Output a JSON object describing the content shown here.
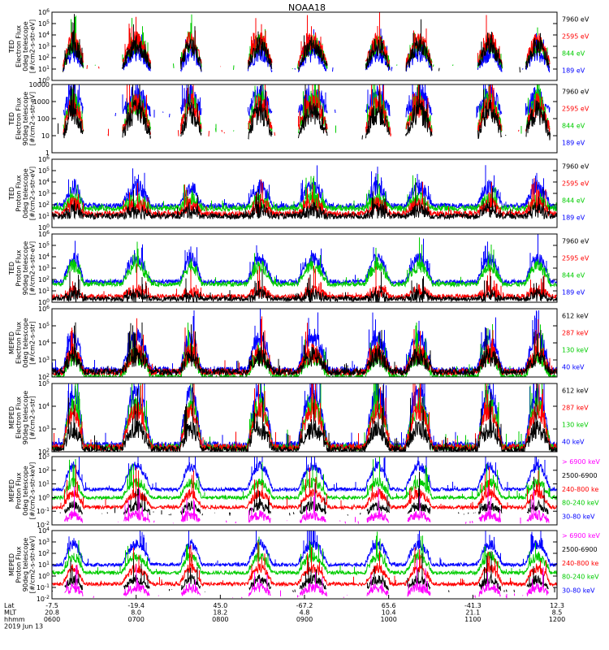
{
  "chart_data": {
    "type": "line",
    "title": "NOAA18",
    "x_axis": {
      "rows": [
        {
          "label": "Lat",
          "values": [
            "-7.5",
            "-19.4",
            "45.0",
            "-67.2",
            "65.6",
            "-41.3",
            "12.3"
          ]
        },
        {
          "label": "MLT",
          "values": [
            "20.8",
            "8.0",
            "18.2",
            "4.8",
            "10.4",
            "21.1",
            "8.5"
          ]
        },
        {
          "label": "hhmm",
          "values": [
            "0600",
            "0700",
            "0800",
            "0900",
            "1000",
            "1100",
            "1200"
          ]
        }
      ],
      "date": "2019 Jun 13",
      "range_hours": [
        6,
        12
      ]
    },
    "panels": [
      {
        "id": "p1",
        "ylabel": [
          "TED",
          "Electron Flux",
          "0deg telescope",
          "[#/cm2-s-str-eV]"
        ],
        "ticks": [
          "10^0",
          "10^1",
          "10^2",
          "10^3",
          "10^4",
          "10^5",
          "10^6"
        ],
        "log_range": [
          0,
          6
        ],
        "legend": [
          {
            "text": "7960 eV",
            "color": "#000000"
          },
          {
            "text": "2595 eV",
            "color": "#ff0000"
          },
          {
            "text": "844 eV",
            "color": "#00cc00"
          },
          {
            "text": "189 eV",
            "color": "#0000ff"
          }
        ],
        "style": "ted_e",
        "sim": {
          "base": [
            1.0,
            1.3,
            1.2,
            0.9
          ],
          "act": [
            3.0,
            3.5,
            3.2,
            2.5
          ],
          "noise": 0.6,
          "gap": true
        }
      },
      {
        "id": "p2",
        "ylabel": [
          "TED",
          "Electron Flux",
          "90deg telescope",
          "[#/cm2-s-str-eV]"
        ],
        "ticks": [
          "1",
          "10",
          "100",
          "1000",
          "10000"
        ],
        "log_range": [
          0,
          4
        ],
        "legend": [
          {
            "text": "7960 eV",
            "color": "#000000"
          },
          {
            "text": "2595 eV",
            "color": "#ff0000"
          },
          {
            "text": "844 eV",
            "color": "#00cc00"
          },
          {
            "text": "189 eV",
            "color": "#0000ff"
          }
        ],
        "style": "ted_e",
        "sim": {
          "base": [
            0.9,
            1.2,
            1.3,
            2.3
          ],
          "act": [
            2.4,
            2.8,
            3.0,
            3.3
          ],
          "noise": 0.5,
          "gap": true
        }
      },
      {
        "id": "p3",
        "ylabel": [
          "TED",
          "Proton Flux",
          "0deg telescope",
          "[#/cm2-s-str-eV]"
        ],
        "ticks": [
          "10^0",
          "10^1",
          "10^2",
          "10^3",
          "10^4",
          "10^5",
          "10^6"
        ],
        "log_range": [
          0,
          6
        ],
        "legend": [
          {
            "text": "7960 eV",
            "color": "#000000"
          },
          {
            "text": "2595 eV",
            "color": "#ff0000"
          },
          {
            "text": "844 eV",
            "color": "#00cc00"
          },
          {
            "text": "189 eV",
            "color": "#0000ff"
          }
        ],
        "style": "ted_p",
        "sim": {
          "base": [
            1.0,
            1.2,
            1.7,
            1.9
          ],
          "act": [
            1.5,
            2.0,
            2.4,
            3.5
          ],
          "noise": 0.5,
          "gap": false
        }
      },
      {
        "id": "p4",
        "ylabel": [
          "TED",
          "Proton Flux",
          "90deg telescope",
          "[#/cm2-s-str-eV]"
        ],
        "ticks": [
          "10^0",
          "10^1",
          "10^2",
          "10^3",
          "10^4",
          "10^5",
          "10^6"
        ],
        "log_range": [
          0,
          6
        ],
        "legend": [
          {
            "text": "7960 eV",
            "color": "#000000"
          },
          {
            "text": "2595 eV",
            "color": "#ff0000"
          },
          {
            "text": "844 eV",
            "color": "#00cc00"
          },
          {
            "text": "189 eV",
            "color": "#0000ff"
          }
        ],
        "style": "ted_p",
        "sim": {
          "base": [
            0.3,
            0.5,
            1.6,
            1.8
          ],
          "act": [
            0.6,
            1.0,
            3.2,
            3.8
          ],
          "noise": 0.4,
          "gap": false
        }
      },
      {
        "id": "p5",
        "ylabel": [
          "MEPED",
          "Electron Flux",
          "0deg telescope",
          "[#/cm2-s-str]"
        ],
        "ticks": [
          "10^2",
          "10^3",
          "10^4",
          "10^5",
          "10^6"
        ],
        "log_range": [
          2,
          6
        ],
        "legend": [
          {
            "text": "612 keV",
            "color": "#000000"
          },
          {
            "text": "287 keV",
            "color": "#ff0000"
          },
          {
            "text": "130 keV",
            "color": "#00cc00"
          },
          {
            "text": "40 keV",
            "color": "#0000ff"
          }
        ],
        "style": "meped_e",
        "sim": {
          "base": [
            2.3,
            2.3,
            2.0,
            2.4
          ],
          "act": [
            3.2,
            3.4,
            3.3,
            4.3
          ],
          "noise": 0.4,
          "gap": false
        }
      },
      {
        "id": "p6",
        "ylabel": [
          "MEPED",
          "Electron Flux",
          "90deg telescope",
          "[#/cm2-s-str]"
        ],
        "ticks": [
          "10^2",
          "10^3",
          "10^4",
          "10^5"
        ],
        "log_range": [
          2,
          5
        ],
        "legend": [
          {
            "text": "612 keV",
            "color": "#000000"
          },
          {
            "text": "287 keV",
            "color": "#ff0000"
          },
          {
            "text": "130 keV",
            "color": "#00cc00"
          },
          {
            "text": "40 keV",
            "color": "#0000ff"
          }
        ],
        "style": "meped_e",
        "sim": {
          "base": [
            2.1,
            2.2,
            2.2,
            2.3
          ],
          "act": [
            3.0,
            3.8,
            4.0,
            4.6
          ],
          "noise": 0.3,
          "gap": false
        }
      },
      {
        "id": "p7",
        "ylabel": [
          "MEPED",
          "Proton Flux",
          "0deg telescope",
          "[#/cm2-s-str-keV]"
        ],
        "ticks": [
          "10^-2",
          "10^-1",
          "10^0",
          "10^1",
          "10^2",
          "10^3"
        ],
        "log_range": [
          -2,
          3
        ],
        "legend": [
          {
            "text": "> 6900 keV",
            "color": "#ff00ff"
          },
          {
            "text": "2500-6900",
            "color": "#000000"
          },
          {
            "text": "240-800 ke",
            "color": "#ff0000"
          },
          {
            "text": "80-240 keV",
            "color": "#00cc00"
          },
          {
            "text": "30-80 keV",
            "color": "#0000ff"
          }
        ],
        "style": "meped_p",
        "sim": {
          "base": [
            -1.8,
            -1.2,
            -0.7,
            0.0,
            0.6
          ],
          "act": [
            -1.3,
            -0.6,
            0.3,
            1.1,
            2.3
          ],
          "noise": 0.25,
          "gap": false
        }
      },
      {
        "id": "p8",
        "ylabel": [
          "MEPED",
          "Proton Flux",
          "90deg telescope",
          "[#/cm2-s-str-keV]"
        ],
        "ticks": [
          "10^-2",
          "10^-1",
          "10^0",
          "10^1",
          "10^2",
          "10^3",
          "10^4"
        ],
        "log_range": [
          -2,
          4
        ],
        "legend": [
          {
            "text": "> 6900 keV",
            "color": "#ff00ff"
          },
          {
            "text": "2500-6900",
            "color": "#000000"
          },
          {
            "text": "240-800 ke",
            "color": "#ff0000"
          },
          {
            "text": "80-240 keV",
            "color": "#00cc00"
          },
          {
            "text": "30-80 keV",
            "color": "#0000ff"
          }
        ],
        "style": "meped_p",
        "sim": {
          "base": [
            -1.8,
            -1.3,
            -0.7,
            0.3,
            1.0
          ],
          "act": [
            -1.0,
            -0.3,
            0.7,
            1.7,
            2.8
          ],
          "noise": 0.3,
          "gap": false
        }
      }
    ],
    "activity_windows_hours": [
      [
        6.13,
        6.38
      ],
      [
        6.83,
        7.18
      ],
      [
        7.52,
        7.78
      ],
      [
        8.32,
        8.62
      ],
      [
        8.92,
        9.28
      ],
      [
        9.72,
        10.02
      ],
      [
        10.2,
        10.52
      ],
      [
        11.05,
        11.35
      ],
      [
        11.62,
        11.92
      ]
    ],
    "grid": false,
    "legend_placement": "right of each panel"
  }
}
